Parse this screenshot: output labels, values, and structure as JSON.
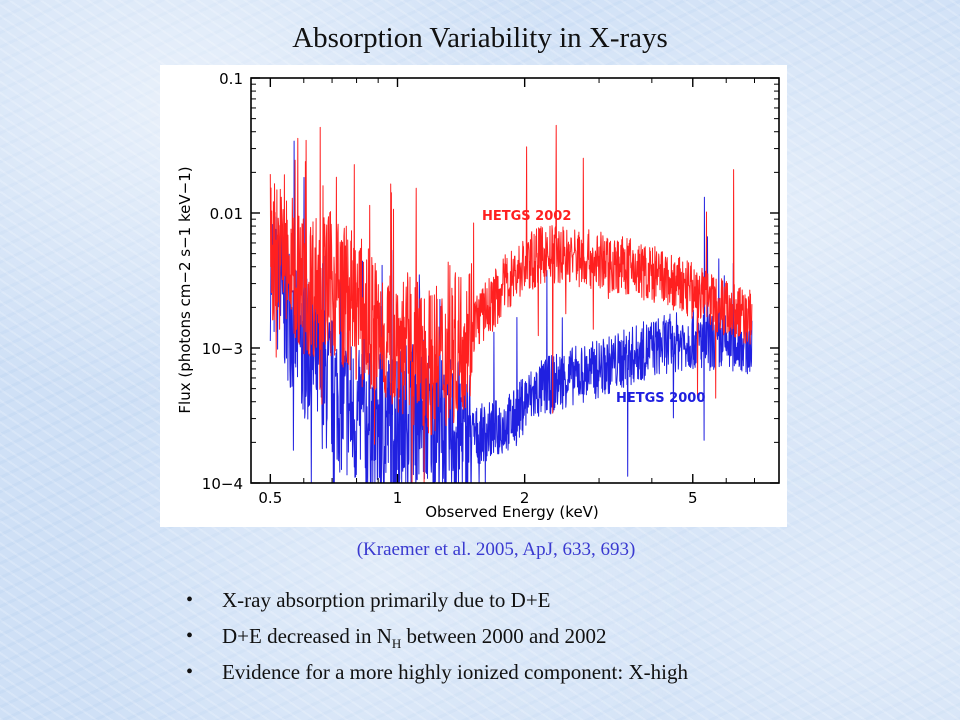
{
  "slide": {
    "title": "Absorption Variability in X-rays",
    "caption": "(Kraemer et al. 2005, ApJ, 633, 693)",
    "bullets": [
      {
        "text": "X-ray absorption primarily due to D+E"
      },
      {
        "pre": "D+E decreased in N",
        "sub": "H",
        "post": " between 2000 and 2002"
      },
      {
        "text": "Evidence for a more highly ionized component: X-high"
      }
    ]
  },
  "chart_data": {
    "type": "line",
    "title": "",
    "xlabel": "Observed Energy (keV)",
    "ylabel": "Flux (photons cm−2 s−1 keV−1)",
    "xscale": "log",
    "yscale": "log",
    "xlim": [
      0.45,
      8.0
    ],
    "ylim": [
      0.0001,
      0.1
    ],
    "x_ticks": [
      0.5,
      1,
      2,
      5
    ],
    "x_tick_labels": [
      "0.5",
      "1",
      "2",
      "5"
    ],
    "y_ticks": [
      0.1,
      0.01,
      0.001,
      0.0001
    ],
    "y_tick_labels": [
      "0.1",
      "0.01",
      "10−3",
      "10−4"
    ],
    "series": [
      {
        "name": "HETGS 2002",
        "color": "#ff2020",
        "x": [
          0.5,
          0.55,
          0.6,
          0.7,
          0.8,
          0.9,
          1.0,
          1.1,
          1.2,
          1.3,
          1.4,
          1.5,
          1.6,
          1.7,
          1.8,
          2.0,
          2.2,
          2.4,
          2.7,
          3.0,
          3.5,
          4.0,
          4.5,
          5.0,
          5.5,
          6.0,
          6.5,
          6.9
        ],
        "values": [
          0.006,
          0.004,
          0.003,
          0.003,
          0.002,
          0.0013,
          0.0012,
          0.0009,
          0.0008,
          0.00085,
          0.0011,
          0.0015,
          0.0018,
          0.0023,
          0.003,
          0.0041,
          0.0049,
          0.005,
          0.0047,
          0.0044,
          0.004,
          0.0035,
          0.003,
          0.0026,
          0.0023,
          0.002,
          0.0018,
          0.0016
        ]
      },
      {
        "name": "HETGS 2000",
        "color": "#2020e0",
        "x": [
          0.5,
          0.55,
          0.6,
          0.7,
          0.8,
          0.9,
          1.0,
          1.1,
          1.2,
          1.3,
          1.5,
          1.7,
          1.9,
          2.0,
          2.2,
          2.5,
          3.0,
          3.5,
          4.0,
          4.5,
          5.0,
          5.5,
          6.0,
          6.5,
          6.9
        ],
        "values": [
          0.004,
          0.002,
          0.001,
          0.0005,
          0.0003,
          0.00025,
          0.0003,
          0.00035,
          0.0003,
          0.00025,
          0.00022,
          0.00025,
          0.0003,
          0.0004,
          0.0005,
          0.0006,
          0.0007,
          0.00085,
          0.001,
          0.0011,
          0.00115,
          0.0011,
          0.0011,
          0.0011,
          0.001
        ]
      }
    ],
    "annotations": [
      {
        "text": "HETGS 2002",
        "color": "#ff2020"
      },
      {
        "text": "HETGS 2000",
        "color": "#2020e0"
      }
    ]
  }
}
